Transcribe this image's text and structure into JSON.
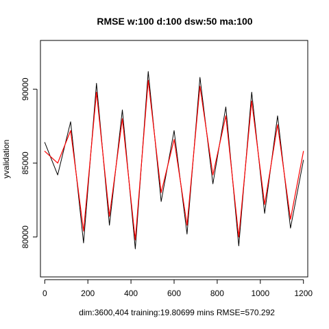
{
  "chart_data": {
    "type": "line",
    "title": "RMSE  w:100 d:100 dsw:50 ma:100",
    "xlabel": "dim:3600,404 training:19.80699 mins RMSE=570.292",
    "ylabel": "yvalidation",
    "xlim": [
      -20,
      1220
    ],
    "ylim": [
      77300,
      93300
    ],
    "x_ticks": [
      0,
      200,
      400,
      600,
      800,
      1000,
      1200
    ],
    "x_tick_labels": [
      "0",
      "200",
      "400",
      "600",
      "800",
      "1000",
      "1200"
    ],
    "y_ticks": [
      80000,
      85000,
      90000
    ],
    "y_tick_labels": [
      "80000",
      "85000",
      "90000"
    ],
    "grid": false,
    "legend": "none",
    "series": [
      {
        "color": "#000000",
        "style": "line",
        "x": [
          0,
          60,
          120,
          180,
          240,
          300,
          360,
          420,
          480,
          540,
          600,
          660,
          720,
          780,
          840,
          900,
          960,
          1020,
          1080,
          1140,
          1200
        ],
        "y": [
          86400,
          84200,
          87800,
          79600,
          90400,
          80800,
          88600,
          79200,
          91200,
          82400,
          87200,
          80200,
          90800,
          83600,
          88800,
          79400,
          89800,
          81600,
          88200,
          80600,
          85200
        ]
      },
      {
        "color": "#ff0000",
        "style": "line",
        "x": [
          0,
          60,
          120,
          180,
          240,
          300,
          360,
          420,
          480,
          540,
          600,
          660,
          720,
          780,
          840,
          900,
          960,
          1020,
          1080,
          1140,
          1200
        ],
        "y": [
          85800,
          85000,
          87200,
          80400,
          89800,
          81400,
          88000,
          79800,
          90600,
          83000,
          86600,
          80800,
          90200,
          84200,
          88200,
          80000,
          89200,
          82200,
          87600,
          81200,
          85800
        ]
      }
    ]
  }
}
